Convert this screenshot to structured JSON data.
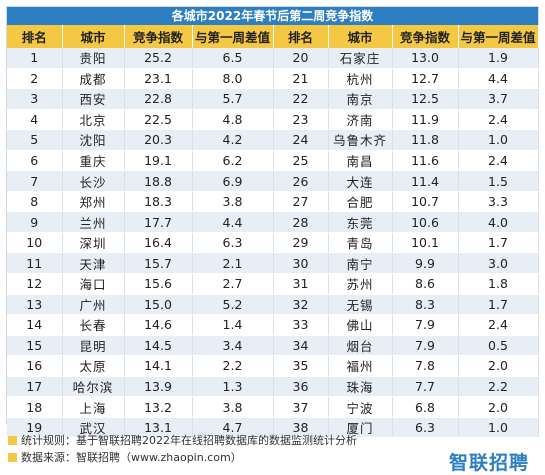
{
  "title": "各城市2022年春节后第二周竞争指数",
  "headers": [
    "排名",
    "城市",
    "竞争指数",
    "与第一周差值",
    "排名",
    "城市",
    "竞争指数",
    "与第一周差值"
  ],
  "rows": [
    [
      "1",
      "贵阳",
      "25.2",
      "6.5",
      "20",
      "石家庄",
      "13.0",
      "1.9"
    ],
    [
      "2",
      "成都",
      "23.1",
      "8.0",
      "21",
      "杭州",
      "12.7",
      "4.4"
    ],
    [
      "3",
      "西安",
      "22.8",
      "5.7",
      "22",
      "南京",
      "12.5",
      "3.7"
    ],
    [
      "4",
      "北京",
      "22.5",
      "4.8",
      "23",
      "济南",
      "11.9",
      "2.4"
    ],
    [
      "5",
      "沈阳",
      "20.3",
      "4.2",
      "24",
      "乌鲁木齐",
      "11.8",
      "1.0"
    ],
    [
      "6",
      "重庆",
      "19.1",
      "6.2",
      "25",
      "南昌",
      "11.6",
      "2.4"
    ],
    [
      "7",
      "长沙",
      "18.8",
      "6.9",
      "26",
      "大连",
      "11.4",
      "1.5"
    ],
    [
      "8",
      "郑州",
      "18.3",
      "3.8",
      "27",
      "合肥",
      "10.7",
      "3.3"
    ],
    [
      "9",
      "兰州",
      "17.7",
      "4.4",
      "28",
      "东莞",
      "10.6",
      "4.0"
    ],
    [
      "10",
      "深圳",
      "16.4",
      "6.3",
      "29",
      "青岛",
      "10.1",
      "1.7"
    ],
    [
      "11",
      "天津",
      "15.7",
      "2.1",
      "30",
      "南宁",
      "9.9",
      "3.0"
    ],
    [
      "12",
      "海口",
      "15.6",
      "2.7",
      "31",
      "苏州",
      "8.6",
      "1.8"
    ],
    [
      "13",
      "广州",
      "15.0",
      "5.2",
      "32",
      "无锡",
      "8.3",
      "1.7"
    ],
    [
      "14",
      "长春",
      "14.6",
      "1.4",
      "33",
      "佛山",
      "7.9",
      "2.4"
    ],
    [
      "15",
      "昆明",
      "14.5",
      "3.4",
      "34",
      "烟台",
      "7.9",
      "0.5"
    ],
    [
      "16",
      "太原",
      "14.1",
      "2.2",
      "35",
      "福州",
      "7.8",
      "2.0"
    ],
    [
      "17",
      "哈尔滨",
      "13.9",
      "1.3",
      "36",
      "珠海",
      "7.7",
      "2.2"
    ],
    [
      "18",
      "上海",
      "13.2",
      "3.8",
      "37",
      "宁波",
      "6.8",
      "2.0"
    ],
    [
      "19",
      "武汉",
      "13.1",
      "4.7",
      "38",
      "厦门",
      "6.3",
      "1.0"
    ]
  ],
  "footer": {
    "note": "统计规则：基于智联招聘2022年在线招聘数据库的数据监测统计分析",
    "source": "数据来源：智联招聘（www.zhaopin.com）"
  },
  "brand": "智联招聘",
  "colors": {
    "title_bg": "#2e7ec2",
    "header_bg": "#f4c842",
    "alt_row": "#e8eef5"
  }
}
